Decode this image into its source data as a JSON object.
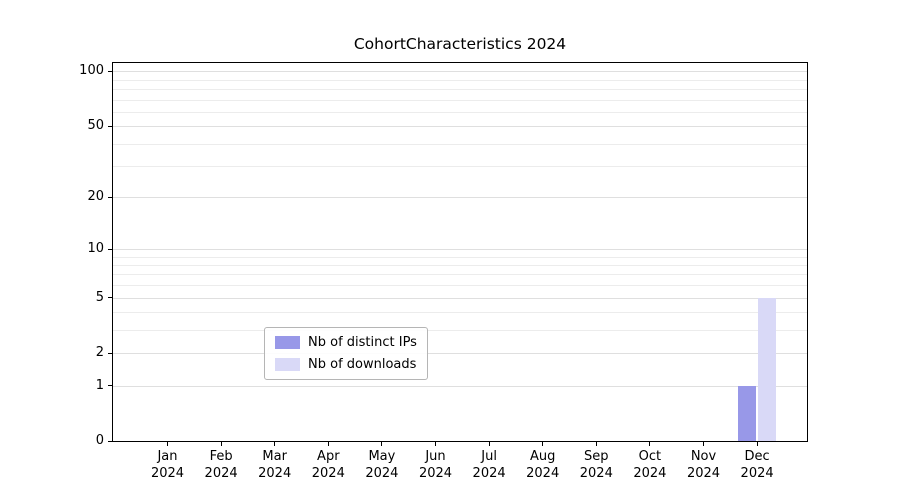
{
  "chart_data": {
    "type": "bar",
    "title": "CohortCharacteristics 2024",
    "categories": [
      "Jan 2024",
      "Feb 2024",
      "Mar 2024",
      "Apr 2024",
      "May 2024",
      "Jun 2024",
      "Jul 2024",
      "Aug 2024",
      "Sep 2024",
      "Oct 2024",
      "Nov 2024",
      "Dec 2024"
    ],
    "series": [
      {
        "name": "Nb of distinct IPs",
        "color": "#9898e8",
        "values": [
          0,
          0,
          0,
          0,
          0,
          0,
          0,
          0,
          0,
          0,
          0,
          1
        ]
      },
      {
        "name": "Nb of downloads",
        "color": "#d9d9f7",
        "values": [
          0,
          0,
          0,
          0,
          0,
          0,
          0,
          0,
          0,
          0,
          0,
          5
        ]
      }
    ],
    "yscale": "log1p",
    "yticks": [
      0,
      1,
      2,
      5,
      10,
      20,
      50,
      100
    ],
    "yminor": [
      3,
      4,
      6,
      7,
      8,
      9,
      30,
      40,
      60,
      70,
      80,
      90
    ],
    "ylim": [
      0,
      111
    ],
    "grid": "horizontal",
    "legend_position": "lower-center-inside"
  }
}
